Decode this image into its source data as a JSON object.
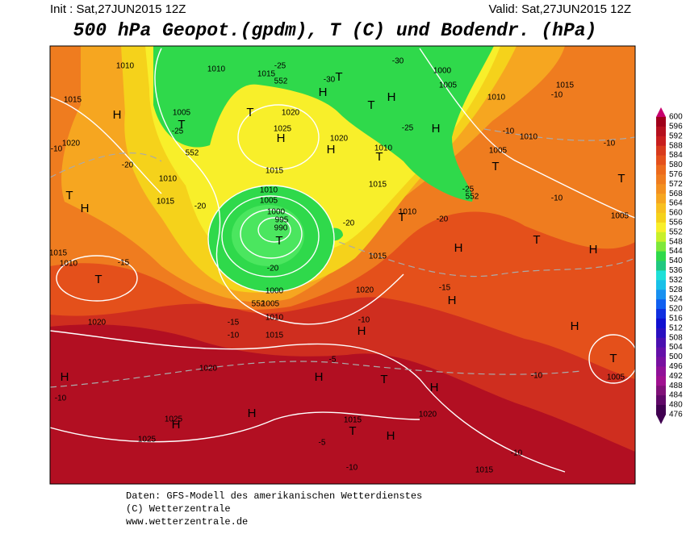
{
  "header": {
    "init": "Init : Sat,27JUN2015 12Z",
    "valid": "Valid: Sat,27JUN2015 12Z",
    "title": "500 hPa Geopot.(gpdm), T (C) und Bodendr. (hPa)"
  },
  "map": {
    "labels": [
      "1010",
      "1010",
      "1015",
      "552",
      "1000",
      "1005",
      "1010",
      "1015",
      "H",
      "1005",
      "T",
      "1020",
      "T",
      "1025",
      "H",
      "1020",
      "H",
      "H",
      "T",
      "H",
      "T",
      "H",
      "1010",
      "T",
      "1005",
      "T",
      "1010",
      "1015",
      "1020",
      "H",
      "T",
      "1015",
      "1010",
      "1015",
      "1010",
      "1005",
      "1000",
      "995",
      "990",
      "T",
      "1015",
      "T",
      "1010",
      "T",
      "H",
      "H",
      "1005",
      "T",
      "1015",
      "1020",
      "1015",
      "1010",
      "T",
      "H",
      "H",
      "1000",
      "1005",
      "1010",
      "1015",
      "1020",
      "H",
      "T",
      "1005",
      "1020",
      "H",
      "H",
      "T",
      "H",
      "1020",
      "H",
      "1025",
      "H",
      "1015",
      "T",
      "H",
      "1025",
      "1015",
      "-25",
      "-30",
      "-30",
      "-25",
      "-20",
      "-20",
      "-20",
      "-20",
      "-15",
      "-10",
      "-15",
      "-10",
      "-10",
      "-5",
      "-15",
      "-10",
      "-10",
      "-10",
      "-10",
      "-10",
      "-10",
      "-5",
      "-10",
      "-10",
      "-25",
      "-20",
      "-25",
      "552",
      "552",
      "552"
    ]
  },
  "colorbar": {
    "ticks": [
      600,
      596,
      592,
      588,
      584,
      580,
      576,
      572,
      568,
      564,
      560,
      556,
      552,
      548,
      544,
      540,
      536,
      532,
      528,
      524,
      520,
      516,
      512,
      508,
      504,
      500,
      496,
      492,
      488,
      484,
      480,
      476
    ]
  },
  "footer": [
    "Daten: GFS-Modell des amerikanischen Wetterdienstes",
    "(C) Wetterzentrale",
    "www.wetterzentrale.de"
  ]
}
